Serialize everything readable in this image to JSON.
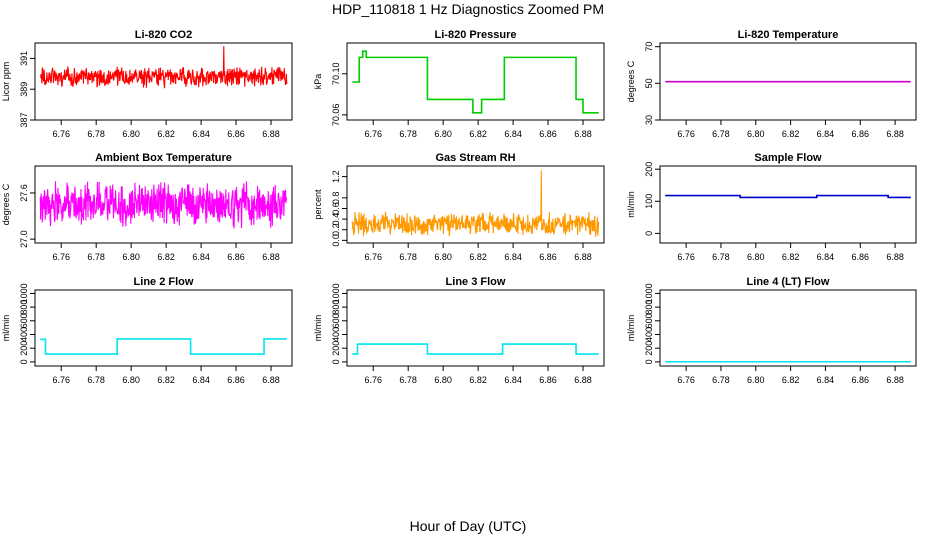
{
  "figure": {
    "title": "HDP_110818  1 Hz Diagnostics Zoomed PM",
    "xlabel": "Hour of Day (UTC)"
  },
  "chart_data": [
    {
      "type": "line",
      "title": "Li-820 CO2",
      "ylabel": "Licor ppm",
      "color": "#ff0000",
      "xlim": [
        6.745,
        6.892
      ],
      "ylim": [
        387,
        392
      ],
      "xticks": [
        6.76,
        6.78,
        6.8,
        6.82,
        6.84,
        6.86,
        6.88
      ],
      "xtick_labels": [
        "6.76",
        "6.78",
        "6.80",
        "6.82",
        "6.84",
        "6.86",
        "6.88"
      ],
      "yticks": [
        387,
        389,
        391
      ],
      "ytick_labels": [
        "387",
        "389",
        "391"
      ],
      "series": [
        {
          "kind": "noise",
          "x0": 6.748,
          "x1": 6.889,
          "mean": 389.8,
          "amp": 0.75,
          "n": 600,
          "spike_x": 6.853,
          "spike_y": 391.8
        }
      ]
    },
    {
      "type": "line",
      "title": "Li-820 Pressure",
      "ylabel": "kPa",
      "color": "#00cc00",
      "xlim": [
        6.745,
        6.892
      ],
      "ylim": [
        70.055,
        70.13
      ],
      "xticks": [
        6.76,
        6.78,
        6.8,
        6.82,
        6.84,
        6.86,
        6.88
      ],
      "xtick_labels": [
        "6.76",
        "6.78",
        "6.80",
        "6.82",
        "6.84",
        "6.86",
        "6.88"
      ],
      "yticks": [
        70.06,
        70.1
      ],
      "ytick_labels": [
        "70.06",
        "70.10"
      ],
      "series": [
        {
          "kind": "steps",
          "points": [
            [
              6.748,
              70.092
            ],
            [
              6.752,
              70.092
            ],
            [
              6.752,
              70.116
            ],
            [
              6.754,
              70.116
            ],
            [
              6.754,
              70.122
            ],
            [
              6.756,
              70.122
            ],
            [
              6.756,
              70.116
            ],
            [
              6.791,
              70.116
            ],
            [
              6.791,
              70.075
            ],
            [
              6.817,
              70.075
            ],
            [
              6.817,
              70.062
            ],
            [
              6.822,
              70.062
            ],
            [
              6.822,
              70.075
            ],
            [
              6.835,
              70.075
            ],
            [
              6.835,
              70.116
            ],
            [
              6.876,
              70.116
            ],
            [
              6.876,
              70.075
            ],
            [
              6.88,
              70.075
            ],
            [
              6.88,
              70.062
            ],
            [
              6.889,
              70.062
            ]
          ]
        }
      ]
    },
    {
      "type": "line",
      "title": "Li-820 Temperature",
      "ylabel": "degrees C",
      "color": "#cc00cc",
      "xlim": [
        6.745,
        6.892
      ],
      "ylim": [
        30,
        72
      ],
      "xticks": [
        6.76,
        6.78,
        6.8,
        6.82,
        6.84,
        6.86,
        6.88
      ],
      "xtick_labels": [
        "6.76",
        "6.78",
        "6.80",
        "6.82",
        "6.84",
        "6.86",
        "6.88"
      ],
      "yticks": [
        30,
        50,
        70
      ],
      "ytick_labels": [
        "30",
        "50",
        "70"
      ],
      "series": [
        {
          "kind": "steps",
          "points": [
            [
              6.748,
              50.9
            ],
            [
              6.889,
              50.9
            ]
          ]
        }
      ]
    },
    {
      "type": "line",
      "title": "Ambient Box Temperature",
      "ylabel": "degrees C",
      "color": "#ff00ff",
      "xlim": [
        6.745,
        6.892
      ],
      "ylim": [
        26.95,
        27.95
      ],
      "xticks": [
        6.76,
        6.78,
        6.8,
        6.82,
        6.84,
        6.86,
        6.88
      ],
      "xtick_labels": [
        "6.76",
        "6.78",
        "6.80",
        "6.82",
        "6.84",
        "6.86",
        "6.88"
      ],
      "yticks": [
        27.0,
        27.6
      ],
      "ytick_labels": [
        "27.0",
        "27.6"
      ],
      "series": [
        {
          "kind": "noise",
          "x0": 6.748,
          "x1": 6.889,
          "mean": 27.45,
          "amp": 0.32,
          "n": 600
        }
      ]
    },
    {
      "type": "line",
      "title": "Gas Stream RH",
      "ylabel": "percent",
      "color": "#ff9900",
      "xlim": [
        6.745,
        6.892
      ],
      "ylim": [
        -0.05,
        1.4
      ],
      "xticks": [
        6.76,
        6.78,
        6.8,
        6.82,
        6.84,
        6.86,
        6.88
      ],
      "xtick_labels": [
        "6.76",
        "6.78",
        "6.80",
        "6.82",
        "6.84",
        "6.86",
        "6.88"
      ],
      "yticks": [
        0.0,
        0.2,
        0.4,
        0.6,
        0.8,
        1.2
      ],
      "ytick_labels": [
        "0.0",
        "0.2",
        "0.4",
        "0.6",
        "0.8",
        "1.2"
      ],
      "series": [
        {
          "kind": "noise",
          "x0": 6.748,
          "x1": 6.889,
          "mean": 0.3,
          "amp": 0.25,
          "n": 550,
          "spike_x": 6.856,
          "spike_y": 1.32
        }
      ]
    },
    {
      "type": "line",
      "title": "Sample Flow",
      "ylabel": "ml/min",
      "color": "#0000cc",
      "xlim": [
        6.745,
        6.892
      ],
      "ylim": [
        -30,
        210
      ],
      "xticks": [
        6.76,
        6.78,
        6.8,
        6.82,
        6.84,
        6.86,
        6.88
      ],
      "xtick_labels": [
        "6.76",
        "6.78",
        "6.80",
        "6.82",
        "6.84",
        "6.86",
        "6.88"
      ],
      "yticks": [
        0,
        100,
        200
      ],
      "ytick_labels": [
        "0",
        "100",
        "200"
      ],
      "series": [
        {
          "kind": "steps",
          "points": [
            [
              6.748,
              118
            ],
            [
              6.791,
              118
            ],
            [
              6.791,
              112
            ],
            [
              6.835,
              112
            ],
            [
              6.835,
              118
            ],
            [
              6.876,
              118
            ],
            [
              6.876,
              112
            ],
            [
              6.889,
              112
            ]
          ]
        }
      ]
    },
    {
      "type": "line",
      "title": "Line 2 Flow",
      "ylabel": "ml/min",
      "color": "#00e5ee",
      "xlim": [
        6.745,
        6.892
      ],
      "ylim": [
        -60,
        1050
      ],
      "xticks": [
        6.76,
        6.78,
        6.8,
        6.82,
        6.84,
        6.86,
        6.88
      ],
      "xtick_labels": [
        "6.76",
        "6.78",
        "6.80",
        "6.82",
        "6.84",
        "6.86",
        "6.88"
      ],
      "yticks": [
        0,
        200,
        400,
        600,
        800,
        1000
      ],
      "ytick_labels": [
        "0",
        "200",
        "400",
        "600",
        "800",
        "1000"
      ],
      "series": [
        {
          "kind": "steps",
          "points": [
            [
              6.748,
              330
            ],
            [
              6.751,
              330
            ],
            [
              6.751,
              115
            ],
            [
              6.792,
              115
            ],
            [
              6.792,
              335
            ],
            [
              6.834,
              335
            ],
            [
              6.834,
              115
            ],
            [
              6.876,
              115
            ],
            [
              6.876,
              335
            ],
            [
              6.889,
              335
            ]
          ]
        }
      ]
    },
    {
      "type": "line",
      "title": "Line 3 Flow",
      "ylabel": "ml/min",
      "color": "#00e5ee",
      "xlim": [
        6.745,
        6.892
      ],
      "ylim": [
        -60,
        1050
      ],
      "xticks": [
        6.76,
        6.78,
        6.8,
        6.82,
        6.84,
        6.86,
        6.88
      ],
      "xtick_labels": [
        "6.76",
        "6.78",
        "6.80",
        "6.82",
        "6.84",
        "6.86",
        "6.88"
      ],
      "yticks": [
        0,
        200,
        400,
        600,
        800,
        1000
      ],
      "ytick_labels": [
        "0",
        "200",
        "400",
        "600",
        "800",
        "1000"
      ],
      "series": [
        {
          "kind": "steps",
          "points": [
            [
              6.748,
              115
            ],
            [
              6.751,
              115
            ],
            [
              6.751,
              260
            ],
            [
              6.791,
              260
            ],
            [
              6.791,
              115
            ],
            [
              6.834,
              115
            ],
            [
              6.834,
              260
            ],
            [
              6.876,
              260
            ],
            [
              6.876,
              115
            ],
            [
              6.889,
              115
            ]
          ]
        }
      ]
    },
    {
      "type": "line",
      "title": "Line 4 (LT) Flow",
      "ylabel": "ml/min",
      "color": "#00e5ee",
      "xlim": [
        6.745,
        6.892
      ],
      "ylim": [
        -60,
        1050
      ],
      "xticks": [
        6.76,
        6.78,
        6.8,
        6.82,
        6.84,
        6.86,
        6.88
      ],
      "xtick_labels": [
        "6.76",
        "6.78",
        "6.80",
        "6.82",
        "6.84",
        "6.86",
        "6.88"
      ],
      "yticks": [
        0,
        200,
        400,
        600,
        800,
        1000
      ],
      "ytick_labels": [
        "0",
        "200",
        "400",
        "600",
        "800",
        "1000"
      ],
      "series": [
        {
          "kind": "steps",
          "points": [
            [
              6.748,
              2
            ],
            [
              6.889,
              2
            ]
          ]
        }
      ]
    }
  ]
}
